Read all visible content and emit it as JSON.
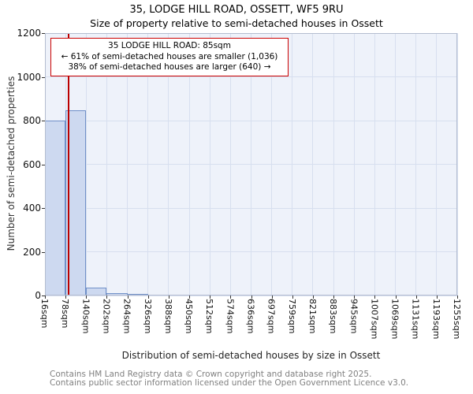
{
  "chart_data": {
    "type": "bar",
    "title": "35, LODGE HILL ROAD, OSSETT, WF5 9RU",
    "subtitle": "Size of property relative to semi-detached houses in Ossett",
    "xlabel": "Distribution of semi-detached houses by size in Ossett",
    "ylabel": "Number of semi-detached properties",
    "ylim": [
      0,
      1200
    ],
    "yticks": [
      0,
      200,
      400,
      600,
      800,
      1000,
      1200
    ],
    "bin_edges_sqm": [
      16,
      78,
      140,
      202,
      264,
      326,
      388,
      450,
      512,
      574,
      636,
      697,
      759,
      821,
      883,
      945,
      1007,
      1069,
      1131,
      1193,
      1255
    ],
    "x_tick_labels": [
      "16sqm",
      "78sqm",
      "140sqm",
      "202sqm",
      "264sqm",
      "326sqm",
      "388sqm",
      "450sqm",
      "512sqm",
      "574sqm",
      "636sqm",
      "697sqm",
      "759sqm",
      "821sqm",
      "883sqm",
      "945sqm",
      "1007sqm",
      "1069sqm",
      "1131sqm",
      "1193sqm",
      "1255sqm"
    ],
    "values": [
      800,
      848,
      36,
      10,
      4,
      0,
      0,
      0,
      0,
      0,
      0,
      0,
      0,
      0,
      0,
      0,
      0,
      0,
      0,
      0
    ],
    "grid": true,
    "plot_background": "#eef2fa",
    "bar_fill": "#cdd9f0",
    "bar_border": "#7090c8",
    "marker": {
      "value_sqm": 85,
      "color": "#bb0000"
    },
    "annotation": {
      "border_color": "#cc0000",
      "lines": [
        "35 LODGE HILL ROAD: 85sqm",
        "← 61% of semi-detached houses are smaller (1,036)",
        "38% of semi-detached houses are larger (640) →"
      ]
    }
  },
  "footer": {
    "line1": "Contains HM Land Registry data © Crown copyright and database right 2025.",
    "line2": "Contains public sector information licensed under the Open Government Licence v3.0."
  }
}
